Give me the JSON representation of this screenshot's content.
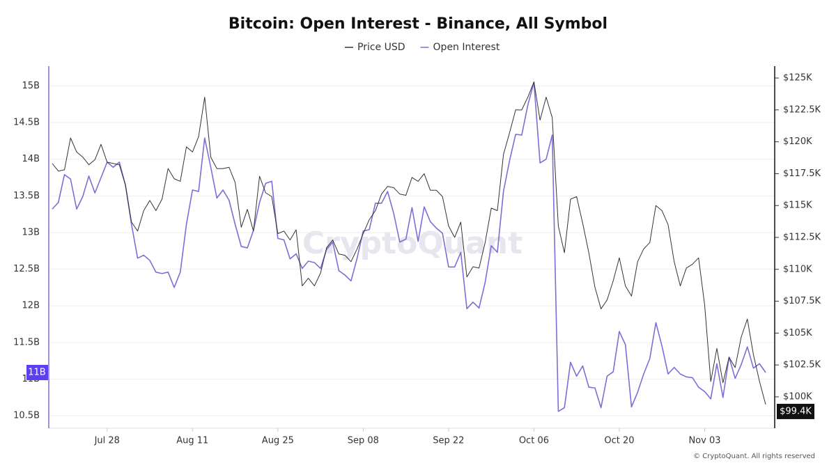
{
  "chart_data": {
    "type": "line",
    "title": "Bitcoin: Open Interest - Binance, All Symbol",
    "watermark": "CryptoQuant",
    "footer": "© CryptoQuant. All rights reserved",
    "x": [
      "Jul 19",
      "Jul 20",
      "Jul 21",
      "Jul 22",
      "Jul 23",
      "Jul 24",
      "Jul 25",
      "Jul 26",
      "Jul 27",
      "Jul 28",
      "Jul 29",
      "Jul 30",
      "Jul 31",
      "Aug 01",
      "Aug 02",
      "Aug 03",
      "Aug 04",
      "Aug 05",
      "Aug 06",
      "Aug 07",
      "Aug 08",
      "Aug 09",
      "Aug 10",
      "Aug 11",
      "Aug 12",
      "Aug 13",
      "Aug 14",
      "Aug 15",
      "Aug 16",
      "Aug 17",
      "Aug 18",
      "Aug 19",
      "Aug 20",
      "Aug 21",
      "Aug 22",
      "Aug 23",
      "Aug 24",
      "Aug 25",
      "Aug 26",
      "Aug 27",
      "Aug 28",
      "Aug 29",
      "Aug 30",
      "Aug 31",
      "Sep 01",
      "Sep 02",
      "Sep 03",
      "Sep 04",
      "Sep 05",
      "Sep 06",
      "Sep 07",
      "Sep 08",
      "Sep 09",
      "Sep 10",
      "Sep 11",
      "Sep 12",
      "Sep 13",
      "Sep 14",
      "Sep 15",
      "Sep 16",
      "Sep 17",
      "Sep 18",
      "Sep 19",
      "Sep 20",
      "Sep 21",
      "Sep 22",
      "Sep 23",
      "Sep 24",
      "Sep 25",
      "Sep 26",
      "Sep 27",
      "Sep 28",
      "Sep 29",
      "Sep 30",
      "Oct 01",
      "Oct 02",
      "Oct 03",
      "Oct 04",
      "Oct 05",
      "Oct 06",
      "Oct 07",
      "Oct 08",
      "Oct 09",
      "Oct 10",
      "Oct 11",
      "Oct 12",
      "Oct 13",
      "Oct 14",
      "Oct 15",
      "Oct 16",
      "Oct 17",
      "Oct 18",
      "Oct 19",
      "Oct 20",
      "Oct 21",
      "Oct 22",
      "Oct 23",
      "Oct 24",
      "Oct 25",
      "Oct 26",
      "Oct 27",
      "Oct 28",
      "Oct 29",
      "Oct 30",
      "Oct 31",
      "Nov 01",
      "Nov 02",
      "Nov 03",
      "Nov 04",
      "Nov 05",
      "Nov 06",
      "Nov 07",
      "Nov 08",
      "Nov 09",
      "Nov 10",
      "Nov 11",
      "Nov 12",
      "Nov 13"
    ],
    "xticks": [
      "Jul 28",
      "Aug 11",
      "Aug 25",
      "Sep 08",
      "Sep 22",
      "Oct 06",
      "Oct 20",
      "Nov 03"
    ],
    "ylim": [
      10.33,
      15.27
    ],
    "yticks": [
      {
        "value": 10.5,
        "label": "10.5B"
      },
      {
        "value": 11,
        "label": "11B"
      },
      {
        "value": 11.5,
        "label": "11.5B"
      },
      {
        "value": 12,
        "label": "12B"
      },
      {
        "value": 12.5,
        "label": "12.5B"
      },
      {
        "value": 13,
        "label": "13B"
      },
      {
        "value": 13.5,
        "label": "13.5B"
      },
      {
        "value": 14,
        "label": "14B"
      },
      {
        "value": 14.5,
        "label": "14.5B"
      },
      {
        "value": 15,
        "label": "15B"
      }
    ],
    "y2lim": [
      97.54,
      125.93
    ],
    "y2ticks": [
      {
        "value": 100,
        "label": "$100K"
      },
      {
        "value": 102.5,
        "label": "$102.5K"
      },
      {
        "value": 105,
        "label": "$105K"
      },
      {
        "value": 107.5,
        "label": "$107.5K"
      },
      {
        "value": 110,
        "label": "$110K"
      },
      {
        "value": 112.5,
        "label": "$112.5K"
      },
      {
        "value": 115,
        "label": "$115K"
      },
      {
        "value": 117.5,
        "label": "$117.5K"
      },
      {
        "value": 120,
        "label": "$120K"
      },
      {
        "value": 122.5,
        "label": "$122.5K"
      },
      {
        "value": 125,
        "label": "$125K"
      }
    ],
    "grid": true,
    "legend": "top",
    "series": [
      {
        "name": "Price USD",
        "color": "#333333",
        "axis": "y2",
        "last_value_label": "$99.4K",
        "values": [
          118.3,
          117.7,
          117.8,
          120.3,
          119.2,
          118.8,
          118.2,
          118.6,
          119.8,
          118.4,
          118.3,
          118.2,
          116.6,
          113.7,
          113.0,
          114.6,
          115.4,
          114.6,
          115.5,
          117.9,
          117.1,
          116.9,
          119.6,
          119.2,
          120.4,
          123.5,
          118.8,
          117.9,
          117.9,
          118.0,
          116.8,
          113.3,
          114.7,
          113.0,
          117.3,
          116.0,
          115.7,
          112.8,
          113.0,
          112.3,
          113.1,
          108.7,
          109.3,
          108.7,
          109.7,
          111.7,
          112.3,
          111.2,
          111.1,
          110.6,
          111.6,
          112.8,
          113.9,
          114.6,
          115.9,
          116.5,
          116.4,
          115.9,
          115.8,
          117.2,
          116.9,
          117.5,
          116.2,
          116.2,
          115.7,
          113.4,
          112.5,
          113.7,
          109.4,
          110.2,
          110.1,
          112.1,
          114.8,
          114.6,
          119.0,
          120.7,
          122.5,
          122.5,
          123.5,
          124.7,
          121.7,
          123.5,
          121.9,
          113.4,
          111.3,
          115.5,
          115.7,
          113.6,
          111.3,
          108.6,
          106.9,
          107.6,
          109.1,
          110.9,
          108.7,
          107.9,
          110.6,
          111.6,
          112.1,
          115.0,
          114.6,
          113.5,
          110.6,
          108.7,
          110.1,
          110.4,
          110.9,
          107.2,
          101.2,
          103.8,
          101.1,
          103.1,
          102.3,
          104.7,
          106.1,
          103.3,
          101.2,
          99.4
        ]
      },
      {
        "name": "Open Interest",
        "color": "#7b6ed6",
        "axis": "y",
        "last_value_label": "11B",
        "values": [
          13.32,
          13.41,
          13.79,
          13.73,
          13.32,
          13.49,
          13.77,
          13.54,
          13.75,
          13.96,
          13.89,
          13.96,
          13.65,
          13.11,
          12.65,
          12.69,
          12.62,
          12.46,
          12.44,
          12.46,
          12.25,
          12.46,
          13.11,
          13.58,
          13.56,
          14.29,
          13.89,
          13.47,
          13.58,
          13.44,
          13.11,
          12.81,
          12.79,
          13.03,
          13.41,
          13.67,
          13.7,
          12.92,
          12.9,
          12.64,
          12.71,
          12.51,
          12.61,
          12.59,
          12.51,
          12.77,
          12.87,
          12.48,
          12.42,
          12.34,
          12.65,
          13.02,
          13.04,
          13.4,
          13.4,
          13.56,
          13.26,
          12.87,
          12.91,
          13.34,
          12.88,
          13.35,
          13.15,
          13.06,
          12.99,
          12.53,
          12.53,
          12.73,
          11.96,
          12.05,
          11.97,
          12.32,
          12.82,
          12.73,
          13.56,
          13.98,
          14.34,
          14.33,
          14.74,
          15.05,
          13.95,
          14.0,
          14.33,
          10.56,
          10.61,
          11.23,
          11.04,
          11.18,
          10.89,
          10.88,
          10.61,
          11.04,
          11.1,
          11.65,
          11.47,
          10.62,
          10.82,
          11.07,
          11.28,
          11.77,
          11.45,
          11.07,
          11.16,
          11.07,
          11.03,
          11.02,
          10.89,
          10.83,
          10.73,
          11.21,
          10.75,
          11.3,
          11.01,
          11.2,
          11.44,
          11.15,
          11.21,
          11.09
        ]
      }
    ]
  }
}
